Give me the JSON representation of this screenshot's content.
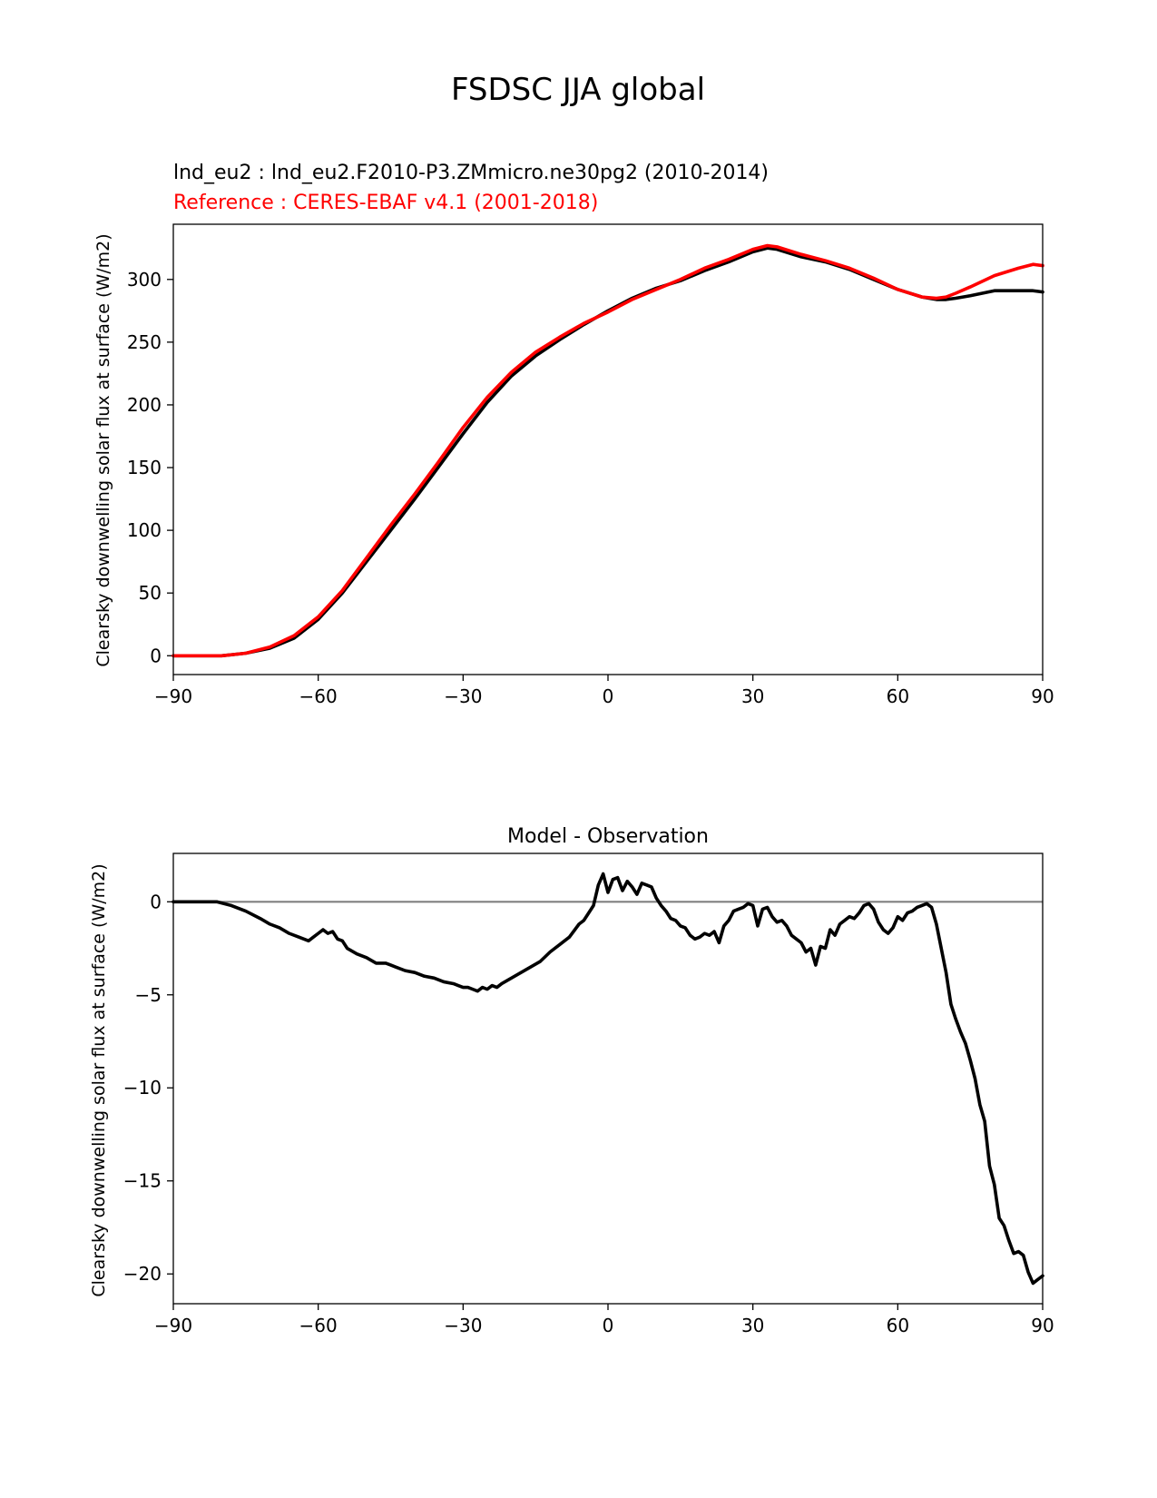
{
  "figure": {
    "suptitle": "FSDSC JJA global"
  },
  "chart_data": [
    {
      "type": "line",
      "title_model": "lnd_eu2 : lnd_eu2.F2010-P3.ZMmicro.ne30pg2 (2010-2014)",
      "title_reference": "Reference : CERES-EBAF v4.1 (2001-2018)",
      "xlabel": "",
      "ylabel": "Clearsky downwelling solar flux at surface (W/m2)",
      "xlim": [
        -90,
        90
      ],
      "ylim": [
        -15,
        344
      ],
      "xticks": [
        -90,
        -60,
        -30,
        0,
        30,
        60,
        90
      ],
      "xtick_labels": [
        "−90",
        "−60",
        "−30",
        "0",
        "30",
        "60",
        "90"
      ],
      "yticks": [
        0,
        50,
        100,
        150,
        200,
        250,
        300
      ],
      "ytick_labels": [
        "0",
        "50",
        "100",
        "150",
        "200",
        "250",
        "300"
      ],
      "series": [
        {
          "name": "lnd_eu2",
          "color": "#000000",
          "x": [
            -90,
            -80,
            -75,
            -70,
            -65,
            -60,
            -55,
            -50,
            -45,
            -40,
            -35,
            -30,
            -25,
            -20,
            -15,
            -10,
            -5,
            0,
            5,
            10,
            15,
            20,
            25,
            30,
            33,
            35,
            40,
            45,
            50,
            55,
            60,
            65,
            68,
            70,
            72,
            75,
            80,
            85,
            88,
            90
          ],
          "y": [
            0,
            0,
            2,
            6,
            14,
            29,
            50,
            75,
            100,
            125,
            151,
            177,
            202,
            223,
            239,
            252,
            264,
            275,
            285,
            293,
            299,
            307,
            314,
            322,
            325,
            324,
            318,
            314,
            308,
            300,
            292,
            286,
            284,
            284,
            285,
            287,
            291,
            291,
            291,
            290
          ]
        },
        {
          "name": "CERES-EBAF v4.1",
          "color": "#ff0000",
          "x": [
            -90,
            -80,
            -75,
            -70,
            -65,
            -60,
            -55,
            -50,
            -45,
            -40,
            -35,
            -30,
            -25,
            -20,
            -15,
            -10,
            -5,
            0,
            5,
            10,
            15,
            20,
            25,
            30,
            33,
            35,
            40,
            45,
            50,
            55,
            60,
            65,
            68,
            70,
            72,
            75,
            80,
            85,
            88,
            90
          ],
          "y": [
            0,
            0,
            2,
            7,
            16,
            31,
            52,
            78,
            104,
            129,
            155,
            182,
            206,
            226,
            242,
            254,
            265,
            274,
            284,
            292,
            300,
            309,
            316,
            324,
            327,
            326,
            320,
            315,
            309,
            301,
            292,
            286,
            285,
            286,
            289,
            294,
            303,
            309,
            312,
            311
          ]
        }
      ]
    },
    {
      "type": "line",
      "title": "Model - Observation",
      "xlabel": "",
      "ylabel": "Clearsky downwelling solar flux at surface (W/m2)",
      "xlim": [
        -90,
        90
      ],
      "ylim": [
        -21.6,
        2.6
      ],
      "xticks": [
        -90,
        -60,
        -30,
        0,
        30,
        60,
        90
      ],
      "xtick_labels": [
        "−90",
        "−60",
        "−30",
        "0",
        "30",
        "60",
        "90"
      ],
      "yticks": [
        0,
        -5,
        -10,
        -15,
        -20
      ],
      "ytick_labels": [
        "0",
        "−5",
        "−10",
        "−15",
        "−20"
      ],
      "zero_line_color": "#808080",
      "series": [
        {
          "name": "Model - Observation",
          "color": "#000000",
          "x": [
            -90,
            -85,
            -81,
            -78,
            -75,
            -72,
            -70,
            -68,
            -66,
            -64,
            -62,
            -61,
            -60,
            -59,
            -58,
            -57,
            -56,
            -55,
            -54,
            -52,
            -50,
            -48,
            -46,
            -45,
            -44,
            -42,
            -40,
            -38,
            -36,
            -34,
            -32,
            -31,
            -30,
            -29,
            -28,
            -27,
            -26,
            -25,
            -24,
            -23,
            -22,
            -20,
            -18,
            -16,
            -14,
            -12,
            -10,
            -8,
            -6,
            -5,
            -4,
            -3,
            -2,
            -1,
            0,
            1,
            2,
            3,
            4,
            5,
            6,
            7,
            8,
            9,
            10,
            11,
            12,
            13,
            14,
            15,
            16,
            17,
            18,
            19,
            20,
            21,
            22,
            23,
            24,
            25,
            26,
            27,
            28,
            29,
            30,
            31,
            32,
            33,
            34,
            35,
            36,
            37,
            38,
            39,
            40,
            41,
            42,
            43,
            44,
            45,
            46,
            47,
            48,
            49,
            50,
            51,
            52,
            53,
            54,
            55,
            56,
            57,
            58,
            59,
            60,
            61,
            62,
            63,
            64,
            65,
            66,
            67,
            68,
            69,
            70,
            71,
            72,
            73,
            74,
            75,
            76,
            77,
            78,
            79,
            80,
            81,
            82,
            83,
            84,
            85,
            86,
            87,
            88,
            89,
            90
          ],
          "y": [
            0.0,
            0.0,
            0.0,
            -0.2,
            -0.5,
            -0.9,
            -1.2,
            -1.4,
            -1.7,
            -1.9,
            -2.1,
            -1.9,
            -1.7,
            -1.5,
            -1.7,
            -1.6,
            -2.0,
            -2.1,
            -2.5,
            -2.8,
            -3.0,
            -3.3,
            -3.3,
            -3.4,
            -3.5,
            -3.7,
            -3.8,
            -4.0,
            -4.1,
            -4.3,
            -4.4,
            -4.5,
            -4.6,
            -4.6,
            -4.7,
            -4.8,
            -4.6,
            -4.7,
            -4.5,
            -4.6,
            -4.4,
            -4.1,
            -3.8,
            -3.5,
            -3.2,
            -2.7,
            -2.3,
            -1.9,
            -1.2,
            -1.0,
            -0.6,
            -0.2,
            0.9,
            1.5,
            0.5,
            1.2,
            1.3,
            0.6,
            1.1,
            0.8,
            0.4,
            1.0,
            0.9,
            0.8,
            0.2,
            -0.2,
            -0.5,
            -0.9,
            -1.0,
            -1.3,
            -1.4,
            -1.8,
            -2.0,
            -1.9,
            -1.7,
            -1.8,
            -1.6,
            -2.2,
            -1.3,
            -1.0,
            -0.5,
            -0.4,
            -0.3,
            -0.1,
            -0.2,
            -1.3,
            -0.4,
            -0.3,
            -0.8,
            -1.1,
            -1.0,
            -1.3,
            -1.8,
            -2.0,
            -2.2,
            -2.7,
            -2.5,
            -3.4,
            -2.4,
            -2.5,
            -1.5,
            -1.8,
            -1.2,
            -1.0,
            -0.8,
            -0.9,
            -0.6,
            -0.2,
            -0.1,
            -0.4,
            -1.1,
            -1.5,
            -1.7,
            -1.4,
            -0.8,
            -1.0,
            -0.6,
            -0.5,
            -0.3,
            -0.2,
            -0.1,
            -0.3,
            -1.2,
            -2.5,
            -3.8,
            -5.5,
            -6.3,
            -7.0,
            -7.6,
            -8.5,
            -9.5,
            -10.9,
            -11.8,
            -14.2,
            -15.2,
            -17.0,
            -17.4,
            -18.2,
            -18.9,
            -18.8,
            -19.0,
            -19.9,
            -20.5,
            -20.3,
            -20.1
          ]
        }
      ]
    }
  ]
}
